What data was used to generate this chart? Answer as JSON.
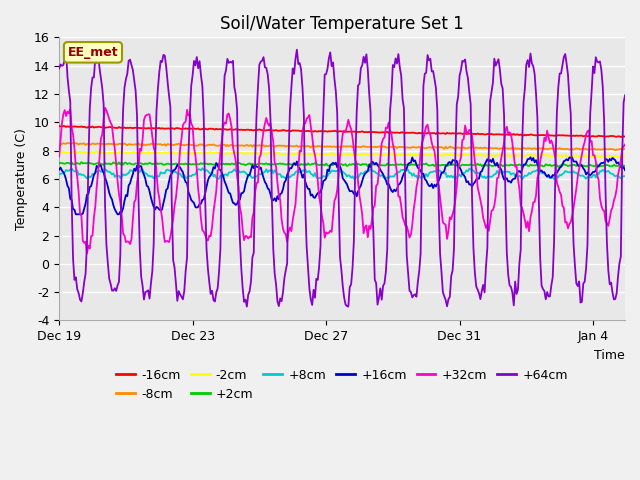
{
  "title": "Soil/Water Temperature Set 1",
  "xlabel": "Time",
  "ylabel": "Temperature (C)",
  "ylim": [
    -4,
    16
  ],
  "yticks": [
    -4,
    -2,
    0,
    2,
    4,
    6,
    8,
    10,
    12,
    14,
    16
  ],
  "xtick_labels": [
    "Dec 19",
    "Dec 23",
    "Dec 27",
    "Dec 31",
    "Jan 4"
  ],
  "label_box": "EE_met",
  "fig_facecolor": "#f0f0f0",
  "plot_facecolor": "#e8e8e8",
  "grid_color": "#ffffff",
  "series_order": [
    "-16cm",
    "-8cm",
    "-2cm",
    "+2cm",
    "+8cm",
    "+16cm",
    "+32cm",
    "+64cm"
  ],
  "colors": {
    "-16cm": "#ff0000",
    "-8cm": "#ff8c00",
    "-2cm": "#ffff00",
    "+2cm": "#00cc00",
    "+8cm": "#00cccc",
    "+16cm": "#0000cc",
    "+32cm": "#ff00cc",
    "+64cm": "#8800cc"
  },
  "legend_row1": [
    "-16cm",
    "-8cm",
    "-2cm",
    "+2cm",
    "+8cm",
    "+16cm"
  ],
  "legend_row2": [
    "+32cm",
    "+64cm"
  ]
}
